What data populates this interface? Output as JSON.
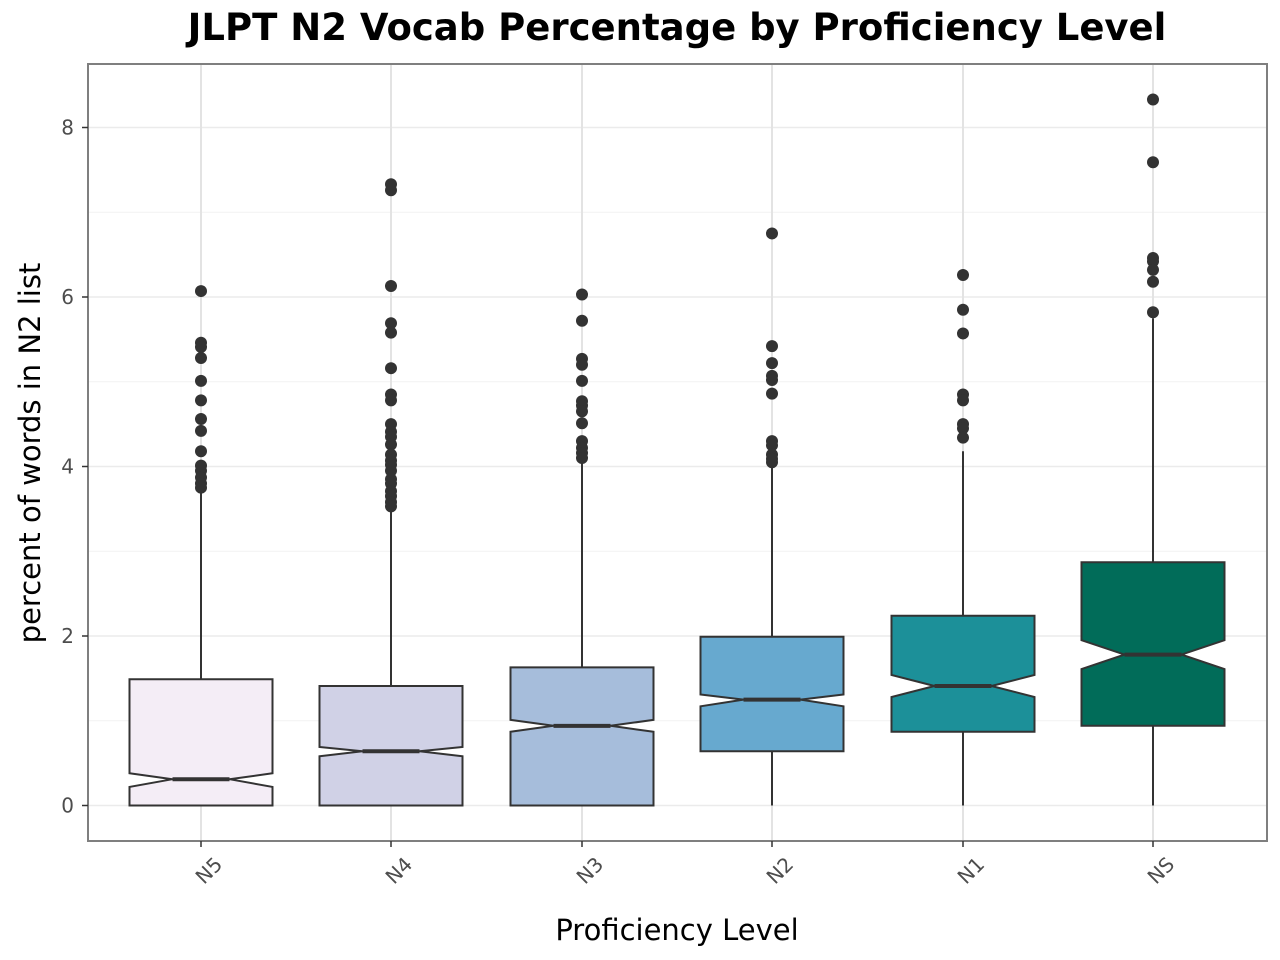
{
  "chart_data": {
    "type": "boxplot",
    "title": "JLPT N2 Vocab Percentage by Proficiency Level",
    "xlabel": "Proficiency Level",
    "ylabel": "percent of words in N2 list",
    "ylim": [
      -0.42,
      8.72
    ],
    "yticks": [
      0,
      2,
      4,
      6,
      8
    ],
    "grid": true,
    "notched": true,
    "categories": [
      "N5",
      "N4",
      "N3",
      "N2",
      "N1",
      "NS"
    ],
    "boxes": [
      {
        "category": "N5",
        "fill": "#f4edf6",
        "min": 0.0,
        "q1": 0.0,
        "median": 0.31,
        "q3": 1.49,
        "whisker_low": 0.0,
        "whisker_high": 3.72,
        "notch_low": 0.22,
        "notch_high": 0.38,
        "outliers": [
          6.07,
          5.46,
          5.41,
          5.28,
          5.01,
          4.78,
          4.56,
          4.42,
          4.18,
          4.01,
          3.95,
          3.87,
          3.8,
          3.75
        ]
      },
      {
        "category": "N4",
        "fill": "#d0d1e6",
        "min": 0.0,
        "q1": 0.0,
        "median": 0.64,
        "q3": 1.41,
        "whisker_low": 0.0,
        "whisker_high": 3.5,
        "notch_low": 0.58,
        "notch_high": 0.69,
        "outliers": [
          7.33,
          7.26,
          6.13,
          5.69,
          5.58,
          5.16,
          4.85,
          4.78,
          4.5,
          4.41,
          4.35,
          4.26,
          4.14,
          4.07,
          4.02,
          3.95,
          3.85,
          3.8,
          3.71,
          3.65,
          3.58,
          3.53
        ]
      },
      {
        "category": "N3",
        "fill": "#a6bddb",
        "min": 0.0,
        "q1": 0.0,
        "median": 0.94,
        "q3": 1.63,
        "whisker_low": 0.0,
        "whisker_high": 4.07,
        "notch_low": 0.87,
        "notch_high": 1.01,
        "outliers": [
          6.03,
          5.72,
          5.27,
          5.2,
          5.01,
          4.77,
          4.72,
          4.65,
          4.51,
          4.3,
          4.22,
          4.16,
          4.1
        ]
      },
      {
        "category": "N2",
        "fill": "#67a9cf",
        "min": 0.0,
        "q1": 0.64,
        "median": 1.25,
        "q3": 1.99,
        "whisker_low": 0.0,
        "whisker_high": 4.04,
        "notch_low": 1.17,
        "notch_high": 1.31,
        "outliers": [
          6.75,
          5.42,
          5.22,
          5.07,
          5.02,
          4.86,
          4.3,
          4.25,
          4.14,
          4.09,
          4.05
        ]
      },
      {
        "category": "N1",
        "fill": "#1c9099",
        "min": 0.0,
        "q1": 0.87,
        "median": 1.41,
        "q3": 2.24,
        "whisker_low": 0.0,
        "whisker_high": 4.18,
        "notch_low": 1.28,
        "notch_high": 1.54,
        "outliers": [
          6.26,
          5.85,
          5.57,
          4.85,
          4.78,
          4.5,
          4.45,
          4.34
        ]
      },
      {
        "category": "NS",
        "fill": "#016c59",
        "min": 0.0,
        "q1": 0.94,
        "median": 1.78,
        "q3": 2.87,
        "whisker_low": 0.0,
        "whisker_high": 5.75,
        "notch_low": 1.61,
        "notch_high": 1.95,
        "outliers": [
          8.33,
          7.59,
          6.46,
          6.42,
          6.32,
          6.18,
          5.82
        ]
      }
    ]
  }
}
